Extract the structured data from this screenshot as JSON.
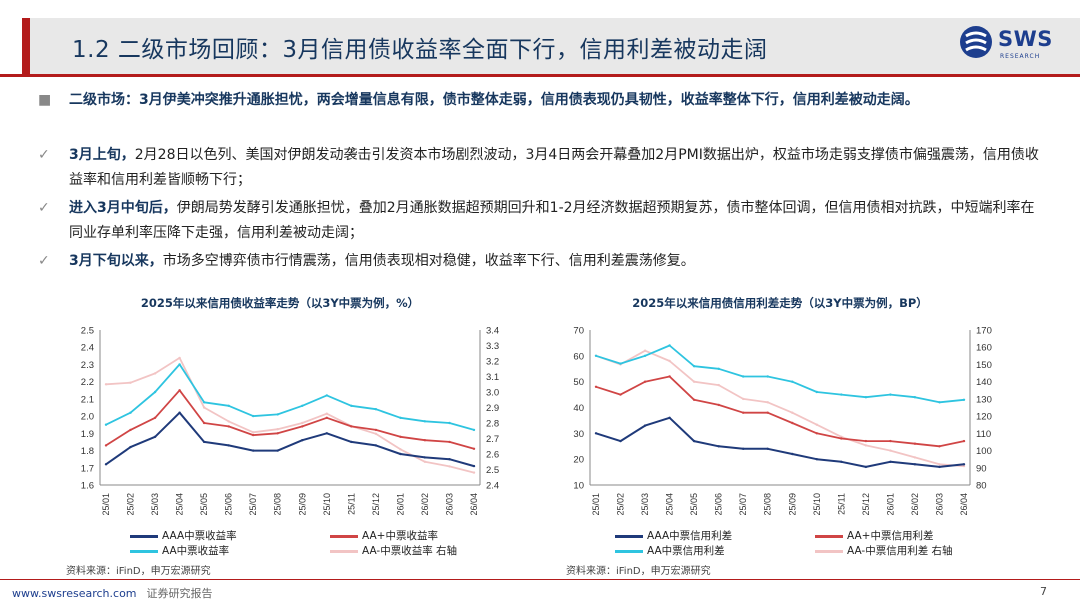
{
  "slide": {
    "title": "1.2 二级市场回顾：3月信用债收益率全面下行，信用利差被动走阔",
    "logo_text": "SWS",
    "logo_sub": "RESEARCH",
    "footer_url": "www.swsresearch.com",
    "footer_label": "证券研究报告",
    "page_number": "7",
    "colors": {
      "navy": "#17375e",
      "red": "#b31b1b",
      "aaa": "#1f3a7a",
      "aa_plus": "#d04545",
      "aa": "#2ec4e0",
      "aa_minus": "#f2c4c4"
    }
  },
  "bullets": [
    {
      "mark": "■",
      "text": "二级市场：3月伊美冲突推升通胀担忧，两会增量信息有限，债市整体走弱，信用债表现仍具韧性，收益率整体下行，信用利差被动走阔。"
    },
    {
      "mark": "✓",
      "lead": "3月上旬，",
      "text": "2月28日以色列、美国对伊朗发动袭击引发资本市场剧烈波动，3月4日两会开幕叠加2月PMI数据出炉，权益市场走弱支撑债市偏强震荡，信用债收益率和信用利差皆顺畅下行；"
    },
    {
      "mark": "✓",
      "lead": "进入3月中旬后，",
      "text": "伊朗局势发酵引发通胀担忧，叠加2月通胀数据超预期回升和1-2月经济数据超预期复苏，债市整体回调，但信用债相对抗跌，中短端利率在同业存单利率压降下走强，信用利差被动走阔；"
    },
    {
      "mark": "✓",
      "lead": "3月下旬以来，",
      "text": "市场多空博弈债市行情震荡，信用债表现相对稳健，收益率下行、信用利差震荡修复。"
    }
  ],
  "chart_data": [
    {
      "type": "line",
      "title": "2025年以来信用债收益率走势（以3Y中票为例，%）",
      "categories": [
        "25/01",
        "25/02",
        "25/03",
        "25/04",
        "25/05",
        "25/06",
        "25/07",
        "25/08",
        "25/09",
        "25/10",
        "25/11",
        "25/12",
        "26/01",
        "26/02",
        "26/03",
        "26/04"
      ],
      "ylim": [
        1.6,
        2.5
      ],
      "y_ticks": [
        "2.5",
        "2.4",
        "2.3",
        "2.2",
        "2.1",
        "2.0",
        "1.9",
        "1.8",
        "1.7",
        "1.6"
      ],
      "y2lim": [
        2.4,
        3.4
      ],
      "y2_ticks": [
        "3.4",
        "3.3",
        "3.2",
        "3.1",
        "3.0",
        "2.9",
        "2.8",
        "2.7",
        "2.6",
        "2.5",
        "2.4"
      ],
      "series": [
        {
          "name": "AAA中票收益率",
          "axis": "left",
          "color": "#1f3a7a",
          "values": [
            1.72,
            1.82,
            1.88,
            2.02,
            1.85,
            1.83,
            1.8,
            1.8,
            1.86,
            1.9,
            1.85,
            1.83,
            1.78,
            1.76,
            1.75,
            1.71
          ]
        },
        {
          "name": "AA+中票收益率",
          "axis": "left",
          "color": "#d04545",
          "values": [
            1.83,
            1.92,
            1.99,
            2.15,
            1.96,
            1.94,
            1.89,
            1.9,
            1.94,
            1.99,
            1.94,
            1.92,
            1.88,
            1.86,
            1.85,
            1.81
          ]
        },
        {
          "name": "AA中票收益率",
          "axis": "left",
          "color": "#2ec4e0",
          "values": [
            1.95,
            2.02,
            2.14,
            2.3,
            2.08,
            2.06,
            2.0,
            2.01,
            2.06,
            2.12,
            2.06,
            2.04,
            1.99,
            1.97,
            1.96,
            1.92
          ]
        },
        {
          "name": "AA-中票收益率 右轴",
          "axis": "right",
          "color": "#f2c4c4",
          "values": [
            3.05,
            3.06,
            3.12,
            3.22,
            2.9,
            2.81,
            2.74,
            2.76,
            2.8,
            2.86,
            2.78,
            2.73,
            2.63,
            2.55,
            2.52,
            2.48
          ]
        }
      ],
      "legend": [
        "AAA中票收益率",
        "AA+中票收益率",
        "AA中票收益率",
        "AA-中票收益率 右轴"
      ],
      "source": "资料来源：iFinD，申万宏源研究"
    },
    {
      "type": "line",
      "title": "2025年以来信用债信用利差走势（以3Y中票为例，BP）",
      "categories": [
        "25/01",
        "25/02",
        "25/03",
        "25/04",
        "25/05",
        "25/06",
        "25/07",
        "25/08",
        "25/09",
        "25/10",
        "25/11",
        "25/12",
        "26/01",
        "26/02",
        "26/03",
        "26/04"
      ],
      "ylim": [
        10,
        70
      ],
      "y_ticks": [
        "70",
        "60",
        "50",
        "40",
        "30",
        "20",
        "10"
      ],
      "y2lim": [
        80,
        170
      ],
      "y2_ticks": [
        "170",
        "160",
        "150",
        "140",
        "130",
        "120",
        "110",
        "100",
        "90",
        "80"
      ],
      "series": [
        {
          "name": "AAA中票信用利差",
          "axis": "left",
          "color": "#1f3a7a",
          "values": [
            30,
            27,
            33,
            36,
            27,
            25,
            24,
            24,
            22,
            20,
            19,
            17,
            19,
            18,
            17,
            18
          ]
        },
        {
          "name": "AA+中票信用利差",
          "axis": "left",
          "color": "#d04545",
          "values": [
            48,
            45,
            50,
            52,
            43,
            41,
            38,
            38,
            34,
            30,
            28,
            27,
            27,
            26,
            25,
            27
          ]
        },
        {
          "name": "AA中票信用利差",
          "axis": "left",
          "color": "#2ec4e0",
          "values": [
            60,
            57,
            60,
            64,
            56,
            55,
            52,
            52,
            50,
            46,
            45,
            44,
            45,
            44,
            42,
            43
          ]
        },
        {
          "name": "AA-中票信用利差 右轴",
          "axis": "right",
          "color": "#f2c4c4",
          "values": [
            155,
            150,
            158,
            152,
            140,
            138,
            130,
            128,
            122,
            115,
            108,
            103,
            100,
            96,
            92,
            91
          ]
        }
      ],
      "legend": [
        "AAA中票信用利差",
        "AA+中票信用利差",
        "AA中票信用利差",
        "AA-中票信用利差 右轴"
      ],
      "source": "资料来源：iFinD，申万宏源研究"
    }
  ]
}
